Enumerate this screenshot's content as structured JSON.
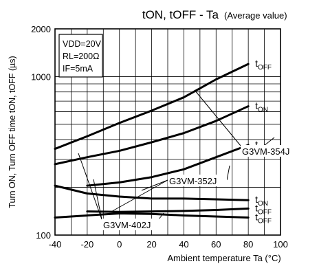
{
  "chart_data": {
    "type": "line",
    "title": "tON, tOFF - Ta",
    "subtitle": "(Average value)",
    "xlabel": "Ambient temperature Ta (°C)",
    "ylabel": "Turn ON, Turn OFF time tON, tOFF (µs)",
    "x_scale": "linear",
    "y_scale": "log",
    "xlim": [
      -40,
      100
    ],
    "ylim": [
      100,
      2000
    ],
    "x_ticks": [
      "-40",
      "-20",
      "0",
      "20",
      "40",
      "60",
      "80",
      "100"
    ],
    "y_tick_labels": [
      {
        "value": 100,
        "label": "100"
      },
      {
        "value": 1000,
        "label": "1000"
      },
      {
        "value": 2000,
        "label": "2000"
      }
    ],
    "grid": true,
    "conditions": [
      "VDD=20V",
      "RL=200Ω",
      "IF=5mA"
    ],
    "series": [
      {
        "name": "tOFF",
        "x": [
          -40,
          -20,
          0,
          20,
          40,
          60,
          80
        ],
        "y": [
          350,
          420,
          510,
          610,
          740,
          960,
          1200
        ]
      },
      {
        "name": "tON",
        "x": [
          -40,
          -20,
          0,
          20,
          40,
          60,
          80
        ],
        "y": [
          280,
          310,
          340,
          385,
          440,
          525,
          650
        ]
      },
      {
        "name": "tON",
        "x": [
          -20,
          0,
          20,
          40,
          60,
          80
        ],
        "y": [
          205,
          215,
          232,
          260,
          310,
          370
        ]
      },
      {
        "name": "tON",
        "x": [
          -40,
          -20,
          0,
          20,
          40,
          60,
          80
        ],
        "y": [
          205,
          183,
          175,
          170,
          170,
          168,
          166
        ]
      },
      {
        "name": "tOFF",
        "x": [
          -20,
          0,
          20,
          40,
          60,
          80
        ],
        "y": [
          141,
          140,
          141,
          142,
          144,
          147
        ]
      },
      {
        "name": "tOFF",
        "x": [
          -40,
          -20,
          0,
          20,
          40,
          60,
          80
        ],
        "y": [
          129,
          133,
          137,
          136,
          133,
          131,
          129
        ]
      }
    ],
    "annotations": [
      "G3VM-354J",
      "G3VM-352J",
      "G3VM-402J"
    ]
  }
}
